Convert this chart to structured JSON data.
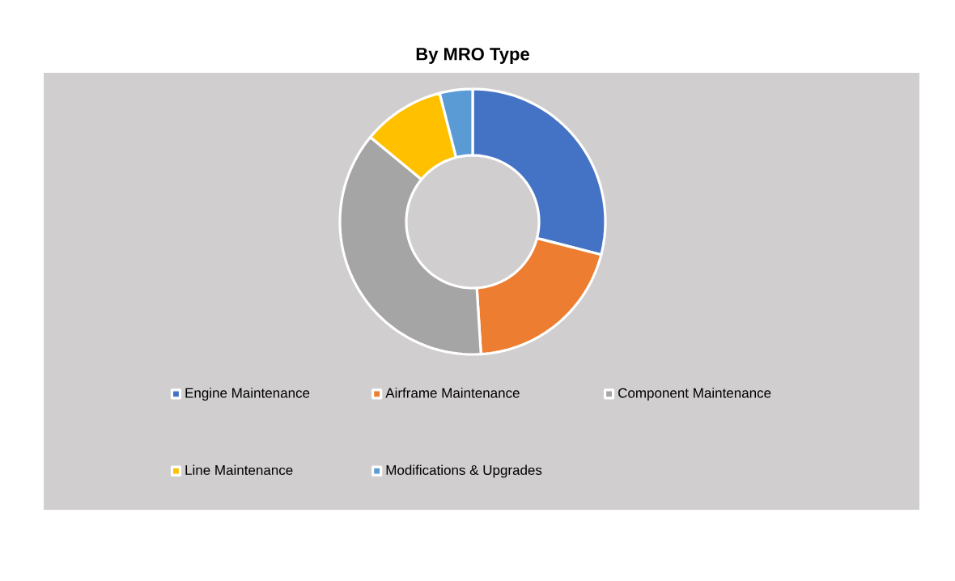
{
  "chart_data": {
    "type": "donut",
    "title": "By MRO Type",
    "categories": [
      "Engine Maintenance",
      "Airframe Maintenance",
      "Component Maintenance",
      "Line Maintenance",
      "Modifications & Upgrades"
    ],
    "values": [
      29,
      20,
      37,
      10,
      4
    ],
    "colors": [
      "#4472c4",
      "#ed7d31",
      "#a5a5a5",
      "#ffc000",
      "#5b9bd5"
    ],
    "legend": "bottom"
  }
}
